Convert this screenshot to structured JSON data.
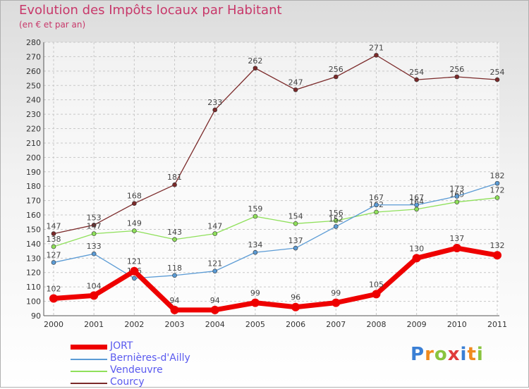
{
  "chart_data": {
    "type": "line",
    "title": "Evolution des Impôts locaux par Habitant",
    "subtitle": "(en € et par an)",
    "categories": [
      "2000",
      "2001",
      "2002",
      "2003",
      "2004",
      "2005",
      "2006",
      "2007",
      "2008",
      "2009",
      "2010",
      "2011"
    ],
    "ylim": [
      90,
      280
    ],
    "ytick_step": 10,
    "series": [
      {
        "name": "JORT",
        "color": "#ee0000",
        "values": [
          102,
          104,
          121,
          94,
          94,
          99,
          96,
          99,
          105,
          130,
          137,
          132
        ]
      },
      {
        "name": "Bernières-d'Ailly",
        "color": "#5b9bd5",
        "values": [
          127,
          133,
          116,
          118,
          121,
          134,
          137,
          152,
          167,
          167,
          173,
          182
        ]
      },
      {
        "name": "Vendeuvre",
        "color": "#8fe05a",
        "values": [
          138,
          147,
          149,
          143,
          147,
          159,
          154,
          156,
          162,
          164,
          169,
          172
        ]
      },
      {
        "name": "Courcy",
        "color": "#7b2a2a",
        "values": [
          147,
          153,
          168,
          181,
          233,
          262,
          247,
          256,
          271,
          254,
          256,
          254
        ]
      }
    ],
    "legend_position": "bottom-left"
  },
  "logo": {
    "letters": [
      "P",
      "r",
      "o",
      "x",
      "i",
      "t",
      "i"
    ],
    "colors": [
      "#3a7fd5",
      "#f08a1e",
      "#8ac43f",
      "#e03c3c",
      "#3a7fd5",
      "#f08a1e",
      "#8ac43f"
    ]
  }
}
